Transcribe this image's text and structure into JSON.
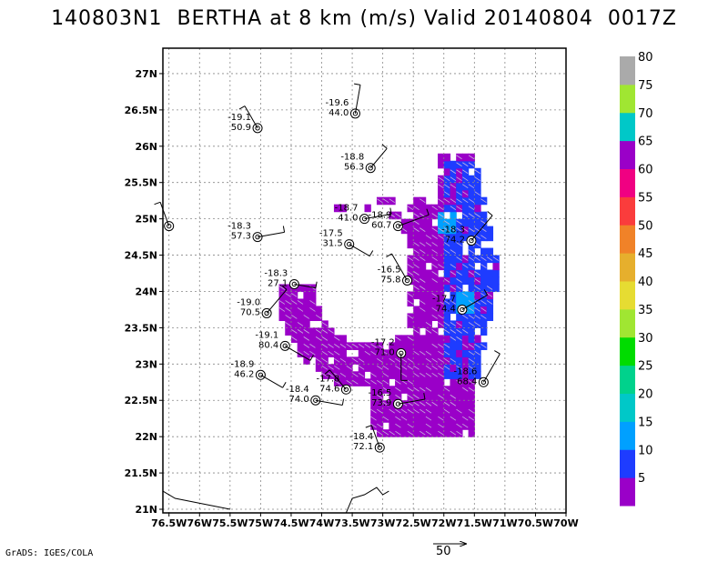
{
  "title": "140803N1  BERTHA at 8 km (m/s) Valid 20140804  0017Z",
  "footer": "GrADS: IGES/COLA",
  "scale_label": "50",
  "chart_data": {
    "type": "map-vector-field",
    "xlim": [
      -76.6,
      -70
    ],
    "ylim": [
      20.95,
      27.35
    ],
    "x_ticks": [
      -76.5,
      -76,
      -75.5,
      -75,
      -74.5,
      -74,
      -73.5,
      -73,
      -72.5,
      -72,
      -71.5,
      -71,
      -70.5,
      -70
    ],
    "x_tick_labels": [
      "76.5W",
      "76W",
      "75.5W",
      "75W",
      "74.5W",
      "74W",
      "73.5W",
      "73W",
      "72.5W",
      "72W",
      "71.5W",
      "71W",
      "70.5W",
      "70W"
    ],
    "y_ticks": [
      21,
      21.5,
      22,
      22.5,
      23,
      23.5,
      24,
      24.5,
      25,
      25.5,
      26,
      26.5,
      27
    ],
    "y_tick_labels": [
      "21N",
      "21.5N",
      "22N",
      "22.5N",
      "23N",
      "23.5N",
      "24N",
      "24.5N",
      "25N",
      "25.5N",
      "26N",
      "26.5N",
      "27N"
    ],
    "colorbar": {
      "levels": [
        "5",
        "10",
        "15",
        "20",
        "25",
        "30",
        "35",
        "40",
        "45",
        "50",
        "55",
        "60",
        "65",
        "70",
        "75",
        "80"
      ],
      "colors": [
        "#9a00c8",
        "#1e3cff",
        "#00a0ff",
        "#00c8c8",
        "#00d28c",
        "#00dc00",
        "#a0e632",
        "#e6dc32",
        "#e6af2d",
        "#f08228",
        "#fa3c3c",
        "#f00082",
        "#9a00c8",
        "#00c8c8",
        "#a0e632",
        "#aaaaaa"
      ],
      "ticks": [
        "5",
        "10",
        "15",
        "20",
        "25",
        "30",
        "35",
        "40",
        "45",
        "50",
        "55",
        "60",
        "65",
        "70",
        "75",
        "80"
      ]
    },
    "stations": [
      {
        "lon": -76.5,
        "lat": 24.9,
        "temp": "",
        "val": "",
        "dir": 200,
        "len": 28
      },
      {
        "lon": -75.05,
        "lat": 26.25,
        "temp": "-19.1",
        "val": "50.9",
        "dir": 210,
        "len": 28
      },
      {
        "lon": -73.45,
        "lat": 26.45,
        "temp": "-19.6",
        "val": "44.0",
        "dir": 170,
        "len": 32
      },
      {
        "lon": -73.2,
        "lat": 25.7,
        "temp": "-18.8",
        "val": "56.3",
        "dir": 140,
        "len": 28
      },
      {
        "lon": -73.3,
        "lat": 25.0,
        "temp": "-18.7",
        "val": "41.0",
        "dir": 100,
        "len": 30
      },
      {
        "lon": -72.75,
        "lat": 24.9,
        "temp": "-18.9",
        "val": "60.7",
        "dir": 110,
        "len": 36
      },
      {
        "lon": -73.55,
        "lat": 24.65,
        "temp": "-17.5",
        "val": "31.5",
        "dir": 60,
        "len": 26
      },
      {
        "lon": -75.05,
        "lat": 24.75,
        "temp": "-18.3",
        "val": "57.3",
        "dir": 100,
        "len": 30
      },
      {
        "lon": -71.55,
        "lat": 24.7,
        "temp": "-18.3",
        "val": "74.2",
        "dir": 140,
        "len": 36
      },
      {
        "lon": -74.45,
        "lat": 24.1,
        "temp": "-18.3",
        "val": "27.1",
        "dir": 80,
        "len": 24
      },
      {
        "lon": -72.6,
        "lat": 24.15,
        "temp": "-16.5",
        "val": "75.8",
        "dir": 210,
        "len": 34
      },
      {
        "lon": -74.9,
        "lat": 23.7,
        "temp": "-19.0",
        "val": "70.5",
        "dir": 140,
        "len": 34
      },
      {
        "lon": -71.7,
        "lat": 23.75,
        "temp": "-17.7",
        "val": "74.4",
        "dir": 120,
        "len": 32
      },
      {
        "lon": -74.6,
        "lat": 23.25,
        "temp": "-19.1",
        "val": "80.4",
        "dir": 60,
        "len": 32
      },
      {
        "lon": -72.7,
        "lat": 23.15,
        "temp": "-17.2",
        "val": "71.0",
        "dir": 0,
        "len": 30
      },
      {
        "lon": -75.0,
        "lat": 22.85,
        "temp": "-18.9",
        "val": "46.2",
        "dir": 60,
        "len": 28
      },
      {
        "lon": -73.6,
        "lat": 22.65,
        "temp": "-17.8",
        "val": "74.6",
        "dir": 220,
        "len": 28
      },
      {
        "lon": -71.35,
        "lat": 22.75,
        "temp": "-18.6",
        "val": "68.4",
        "dir": 150,
        "len": 36
      },
      {
        "lon": -74.1,
        "lat": 22.5,
        "temp": "-18.4",
        "val": "74.0",
        "dir": 80,
        "len": 30
      },
      {
        "lon": -72.75,
        "lat": 22.45,
        "temp": "-16.5",
        "val": "73.9",
        "dir": 100,
        "len": 30
      },
      {
        "lon": -73.05,
        "lat": 21.85,
        "temp": "-18.4",
        "val": "72.1",
        "dir": 200,
        "len": 26
      }
    ]
  }
}
